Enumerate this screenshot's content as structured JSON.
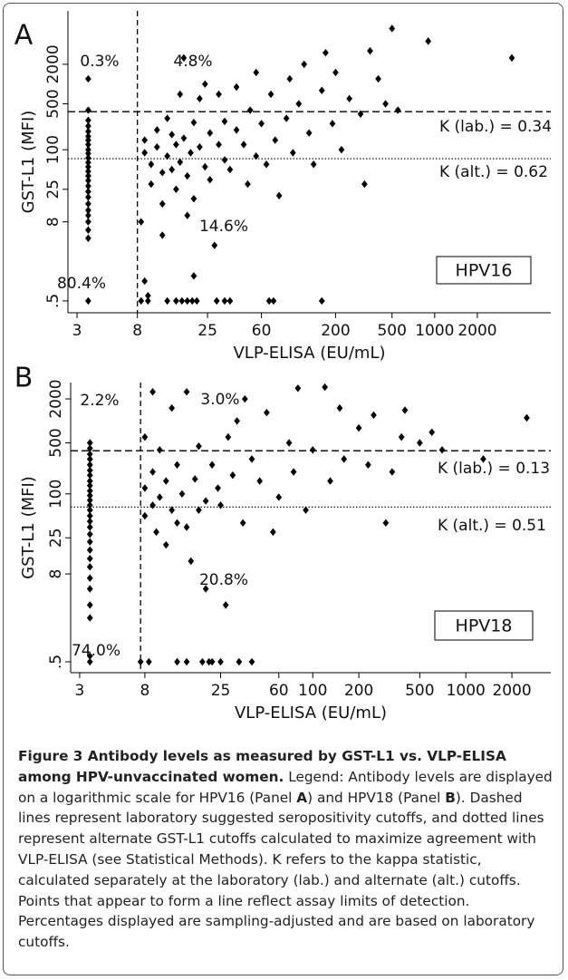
{
  "chart_data": [
    {
      "type": "scatter",
      "panel_label": "A",
      "x_label": "VLP-ELISA (EU/mL)",
      "y_label": "GST-L1 (MFI)",
      "log_x": true,
      "log_y": true,
      "color": "#000000",
      "xlim": [
        2.59,
        6590
      ],
      "ylim": [
        0.33,
        13000
      ],
      "xticks": [
        3,
        8,
        25,
        60,
        200,
        500,
        1000,
        2000
      ],
      "yticks": [
        {
          "value": 0.5,
          "label": ".5"
        },
        8,
        25,
        100,
        500,
        2000
      ],
      "ref_lines": {
        "x_dashed": 8,
        "y_dashed": 380,
        "y_dotted": 73
      },
      "annotations": [
        "0.3%",
        "4.8%",
        "14.6%",
        "80.4%"
      ],
      "kappa": [
        "K (lab.) = 0.34",
        "K (alt.) = 0.62"
      ],
      "box_label": "HPV16",
      "x": [
        3.6,
        3.6,
        3.6,
        3.6,
        3.6,
        3.6,
        3.6,
        3.6,
        3.6,
        3.6,
        3.6,
        3.6,
        3.6,
        3.6,
        3.6,
        3.6,
        3.6,
        3.6,
        3.6,
        3.6,
        3.6,
        3.6,
        3.6,
        3.6,
        3.6,
        3.6,
        8.5,
        9.5,
        13,
        15,
        16.5,
        18,
        19.5,
        21,
        29,
        33,
        36,
        68,
        73,
        160,
        9.5,
        9,
        9,
        10,
        10,
        11,
        11,
        12,
        12,
        13,
        13,
        14,
        14,
        15,
        15,
        16,
        16,
        17,
        17,
        18,
        19,
        20,
        20,
        22,
        22,
        24,
        24,
        26,
        26,
        28,
        30,
        30,
        33,
        33,
        36,
        40,
        40,
        45,
        48,
        50,
        55,
        55,
        60,
        65,
        70,
        75,
        80,
        90,
        95,
        100,
        110,
        120,
        130,
        140,
        160,
        170,
        190,
        200,
        220,
        250,
        300,
        320,
        350,
        400,
        450,
        500,
        550,
        900,
        3500,
        8.5,
        12,
        18,
        20,
        9
      ],
      "values": [
        1200,
        400,
        280,
        230,
        190,
        160,
        140,
        120,
        100,
        88,
        75,
        64,
        55,
        47,
        40,
        34,
        28,
        23,
        19,
        15,
        12,
        10,
        8,
        6,
        4.5,
        0.5,
        0.5,
        0.5,
        0.5,
        0.5,
        0.5,
        0.5,
        0.5,
        0.5,
        0.5,
        0.5,
        0.5,
        0.5,
        0.5,
        0.5,
        0.6,
        140,
        90,
        60,
        30,
        200,
        110,
        45,
        15,
        300,
        80,
        170,
        50,
        120,
        25,
        700,
        65,
        2500,
        150,
        40,
        90,
        260,
        18,
        600,
        110,
        1000,
        55,
        180,
        35,
        3.5,
        700,
        120,
        270,
        70,
        50,
        900,
        200,
        120,
        30,
        400,
        1500,
        80,
        250,
        60,
        700,
        140,
        20,
        300,
        1200,
        90,
        500,
        2000,
        180,
        60,
        800,
        3000,
        250,
        1500,
        100,
        600,
        350,
        30,
        3200,
        1200,
        500,
        7000,
        400,
        4500,
        2500,
        8,
        5,
        10,
        1.2,
        1.0
      ]
    },
    {
      "type": "scatter",
      "panel_label": "B",
      "x_label": "VLP-ELISA (EU/mL)",
      "y_label": "GST-L1 (MFI)",
      "log_x": true,
      "log_y": true,
      "color": "#000000",
      "xlim": [
        2.62,
        3590
      ],
      "ylim": [
        0.355,
        3350
      ],
      "xticks": [
        3,
        8,
        25,
        60,
        100,
        200,
        500,
        1000,
        2000
      ],
      "yticks": [
        {
          "value": 0.5,
          "label": ".5"
        },
        8,
        25,
        100,
        500,
        2000
      ],
      "ref_lines": {
        "x_dashed": 7.5,
        "y_dashed": 390,
        "y_dotted": 66
      },
      "annotations": [
        "2.2%",
        "3.0%",
        "20.8%",
        "74.0%"
      ],
      "kappa": [
        "K (lab.) = 0.13",
        "K (alt.) = 0.51"
      ],
      "box_label": "HPV18",
      "x": [
        3.5,
        3.5,
        3.5,
        3.5,
        3.5,
        3.5,
        3.5,
        3.5,
        3.5,
        3.5,
        3.5,
        3.5,
        3.5,
        3.5,
        3.5,
        3.5,
        3.5,
        3.5,
        3.5,
        3.5,
        3.5,
        3.5,
        3.5,
        3.5,
        3.5,
        3.5,
        3.5,
        3.5,
        7.5,
        8.5,
        13,
        15,
        19,
        21,
        22,
        25,
        33,
        40,
        8,
        8,
        8,
        9,
        9,
        9,
        9.5,
        10,
        10,
        11,
        11,
        12,
        12,
        13,
        13,
        14,
        15,
        15,
        16,
        17,
        18,
        18,
        20,
        20,
        22,
        24,
        25,
        27,
        28,
        30,
        32,
        35,
        36,
        40,
        45,
        50,
        55,
        60,
        70,
        75,
        80,
        90,
        100,
        120,
        130,
        150,
        160,
        200,
        230,
        250,
        300,
        330,
        380,
        400,
        500,
        600,
        700,
        1300,
        2500
      ],
      "values": [
        500,
        420,
        350,
        300,
        250,
        210,
        180,
        150,
        130,
        110,
        95,
        82,
        70,
        60,
        50,
        42,
        35,
        28,
        22,
        17,
        13,
        10,
        7,
        5,
        3,
        2,
        0.5,
        0.6,
        0.5,
        0.5,
        0.5,
        0.5,
        0.5,
        0.5,
        0.5,
        0.5,
        0.5,
        0.5,
        600,
        120,
        50,
        2500,
        200,
        70,
        30,
        400,
        90,
        150,
        20,
        1500,
        60,
        250,
        40,
        100,
        35,
        2500,
        12,
        160,
        450,
        60,
        80,
        5,
        250,
        120,
        70,
        3,
        600,
        180,
        1000,
        40,
        2000,
        300,
        150,
        1300,
        30,
        90,
        500,
        200,
        2800,
        60,
        400,
        2900,
        150,
        1500,
        300,
        800,
        250,
        1200,
        40,
        200,
        600,
        1400,
        500,
        700,
        400,
        300,
        1100
      ]
    }
  ],
  "caption": {
    "title": "Figure 3 Antibody levels as measured by GST-L1 vs. VLP-ELISA among HPV-unvaccinated women.",
    "body": [
      "Legend: Antibody levels are displayed on a logarithmic scale for HPV16 (Panel ",
      "A",
      ") and HPV18 (Panel ",
      "B",
      "). Dashed lines represent laboratory suggested seropositivity cutoffs, and dotted lines represent alternate GST-L1 cutoffs calculated to maximize agreement with VLP-ELISA (see Statistical Methods). K refers to the kappa statistic, calculated separately at the laboratory (lab.) and alternate (alt.) cutoffs. Points that appear to form a line reflect assay limits of detection. Percentages displayed are sampling-adjusted and are based on laboratory cutoffs."
    ]
  }
}
